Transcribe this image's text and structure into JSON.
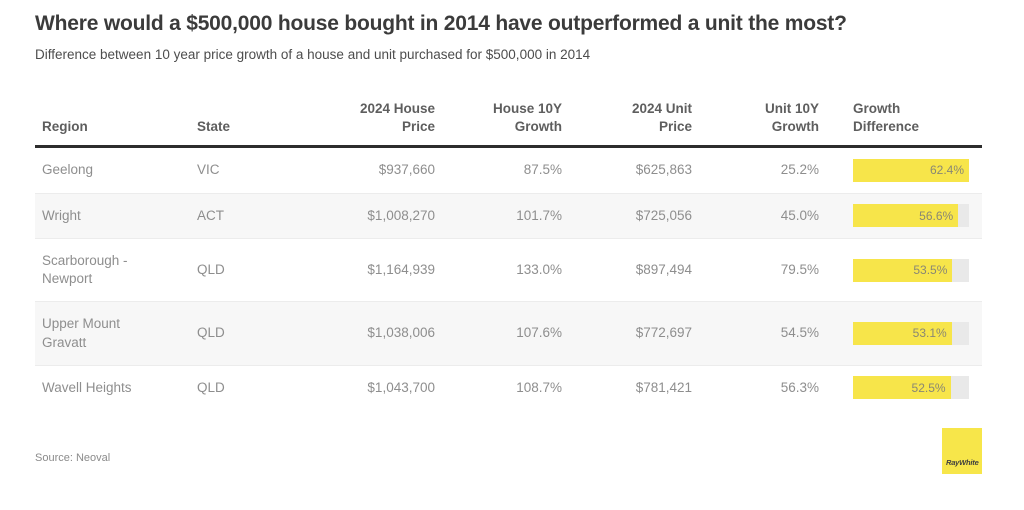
{
  "header": {
    "title": "Where would a $500,000 house bought in 2014 have outperformed a unit the most?",
    "subtitle": "Difference between 10 year price growth of a house and unit purchased for $500,000 in 2014"
  },
  "table": {
    "columns": [
      "Region",
      "State",
      "2024 House\nPrice",
      "House 10Y\nGrowth",
      "2024 Unit\nPrice",
      "Unit 10Y\nGrowth",
      "Growth\nDifference"
    ],
    "rows": [
      {
        "region": "Geelong",
        "state": "VIC",
        "house_price": "$937,660",
        "house_growth": "87.5%",
        "unit_price": "$625,863",
        "unit_growth": "25.2%",
        "difference": "62.4%",
        "difference_value": 62.4
      },
      {
        "region": "Wright",
        "state": "ACT",
        "house_price": "$1,008,270",
        "house_growth": "101.7%",
        "unit_price": "$725,056",
        "unit_growth": "45.0%",
        "difference": "56.6%",
        "difference_value": 56.6
      },
      {
        "region": "Scarborough - Newport",
        "state": "QLD",
        "house_price": "$1,164,939",
        "house_growth": "133.0%",
        "unit_price": "$897,494",
        "unit_growth": "79.5%",
        "difference": "53.5%",
        "difference_value": 53.5
      },
      {
        "region": "Upper Mount Gravatt",
        "state": "QLD",
        "house_price": "$1,038,006",
        "house_growth": "107.6%",
        "unit_price": "$772,697",
        "unit_growth": "54.5%",
        "difference": "53.1%",
        "difference_value": 53.1
      },
      {
        "region": "Wavell Heights",
        "state": "QLD",
        "house_price": "$1,043,700",
        "house_growth": "108.7%",
        "unit_price": "$781,421",
        "unit_growth": "56.3%",
        "difference": "52.5%",
        "difference_value": 52.5
      }
    ]
  },
  "footer": {
    "source": "Source: Neoval",
    "logo_text": "RayWhite"
  },
  "colors": {
    "accent_yellow": "#f7e54a",
    "bar_track_gray": "#e9e9e9",
    "alt_row_gray": "#f7f7f7",
    "header_rule": "#2d2d2d",
    "text_gray": "#8e8e8e"
  },
  "chart_data": {
    "type": "table",
    "title": "Where would a $500,000 house bought in 2014 have outperformed a unit the most?",
    "subtitle": "Difference between 10 year price growth of a house and unit purchased for $500,000 in 2014",
    "columns": [
      "Region",
      "State",
      "2024 House Price",
      "House 10Y Growth",
      "2024 Unit Price",
      "Unit 10Y Growth",
      "Growth Difference"
    ],
    "rows": [
      [
        "Geelong",
        "VIC",
        937660,
        87.5,
        625863,
        25.2,
        62.4
      ],
      [
        "Wright",
        "ACT",
        1008270,
        101.7,
        725056,
        45.0,
        56.6
      ],
      [
        "Scarborough - Newport",
        "QLD",
        1164939,
        133.0,
        897494,
        79.5,
        53.5
      ],
      [
        "Upper Mount Gravatt",
        "QLD",
        1038006,
        107.6,
        772697,
        54.5,
        53.1
      ],
      [
        "Wavell Heights",
        "QLD",
        1043700,
        108.7,
        781421,
        56.3,
        52.5
      ]
    ],
    "bar_column": "Growth Difference",
    "bar_units": "percent",
    "bar_axis_max": 62.4,
    "source": "Source: Neoval"
  }
}
